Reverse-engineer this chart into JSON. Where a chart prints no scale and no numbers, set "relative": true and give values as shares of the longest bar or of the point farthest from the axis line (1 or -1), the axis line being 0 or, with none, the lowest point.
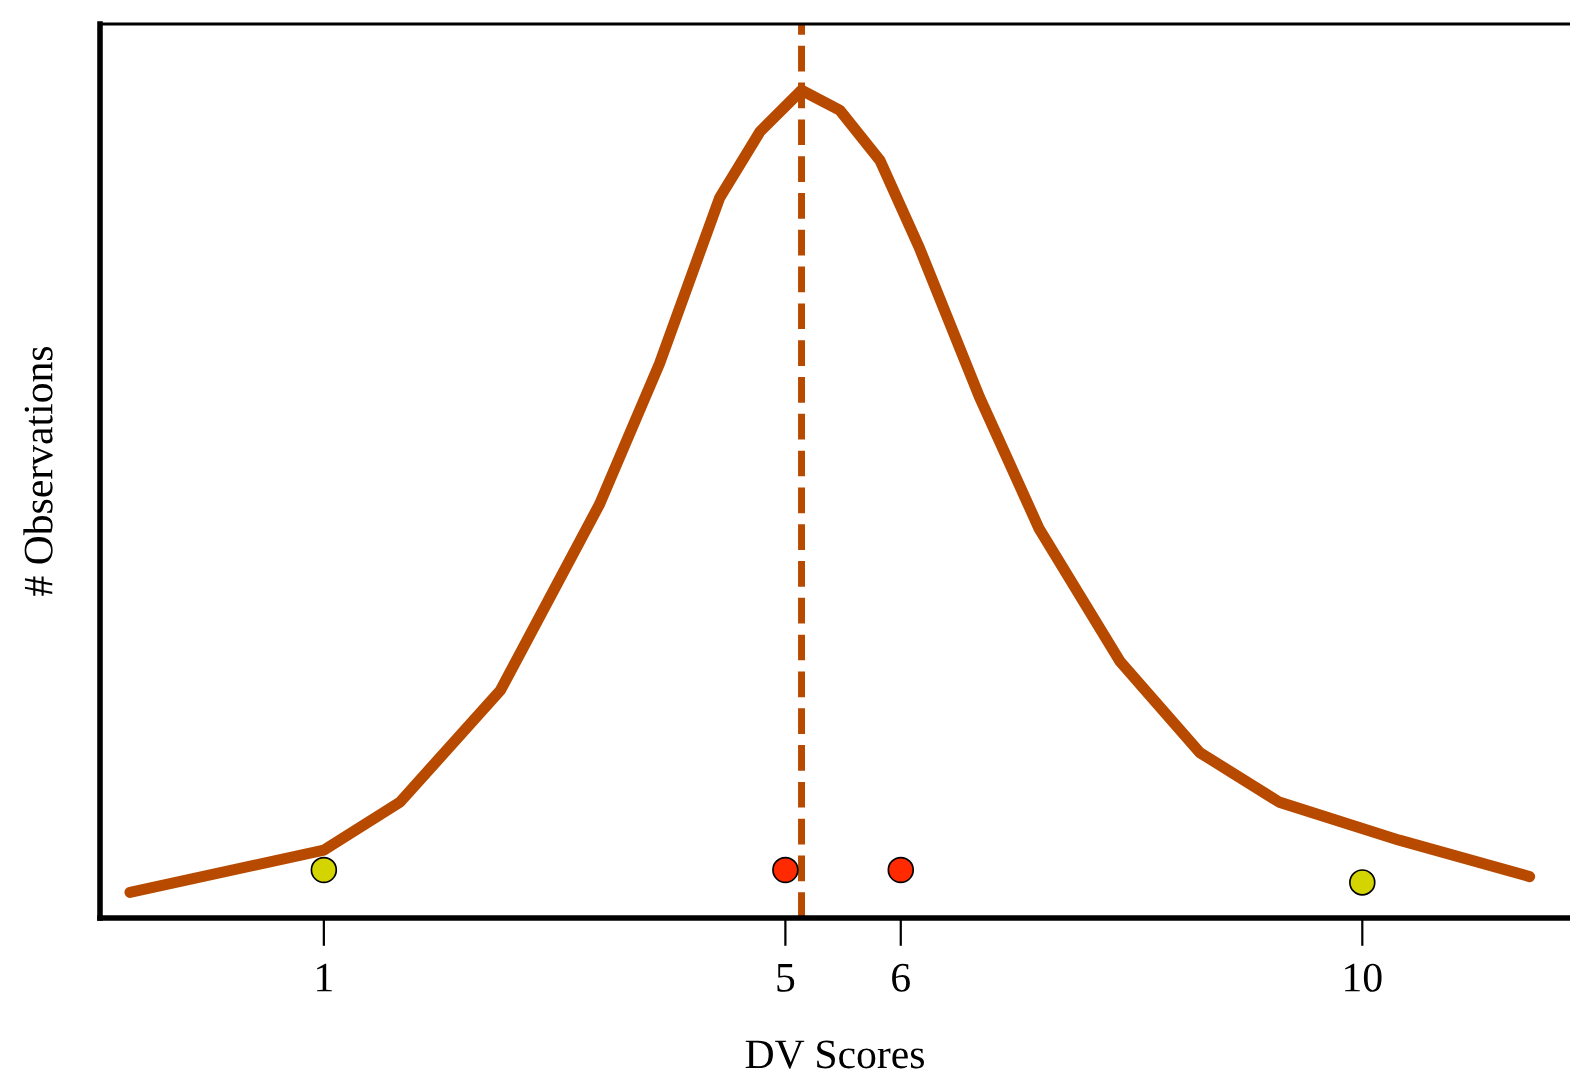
{
  "chart_data": {
    "type": "line",
    "xlabel": "DV Scores",
    "ylabel": "# Observations",
    "relative": true,
    "xlim": [
      -0.94,
      11.8
    ],
    "xticks": [
      1,
      5,
      6,
      10
    ],
    "grid": false,
    "legend": false,
    "series": [
      {
        "color": "#b84a00",
        "x": [
          -0.68,
          1.0,
          1.66,
          2.53,
          3.39,
          3.91,
          4.43,
          4.78,
          5.14,
          5.47,
          5.82,
          6.16,
          6.68,
          7.2,
          7.9,
          8.59,
          9.28,
          10.32,
          11.45
        ],
        "values": [
          0.031,
          0.082,
          0.14,
          0.275,
          0.5,
          0.67,
          0.87,
          0.95,
          1.0,
          0.976,
          0.915,
          0.81,
          0.63,
          0.47,
          0.31,
          0.2,
          0.14,
          0.094,
          0.05
        ]
      },
      {
        "type": "scatter",
        "marker": "circle",
        "x": [
          1,
          5,
          6,
          10
        ],
        "colors": [
          "#d4d400",
          "#ff2a00",
          "#ff2a00",
          "#d4d400"
        ],
        "values": [
          0.058,
          0.058,
          0.058,
          0.043
        ]
      }
    ],
    "ref_lines": [
      {
        "axis": "x",
        "value": 5.14,
        "color": "#b84a00",
        "line_style": "dashed"
      }
    ]
  }
}
